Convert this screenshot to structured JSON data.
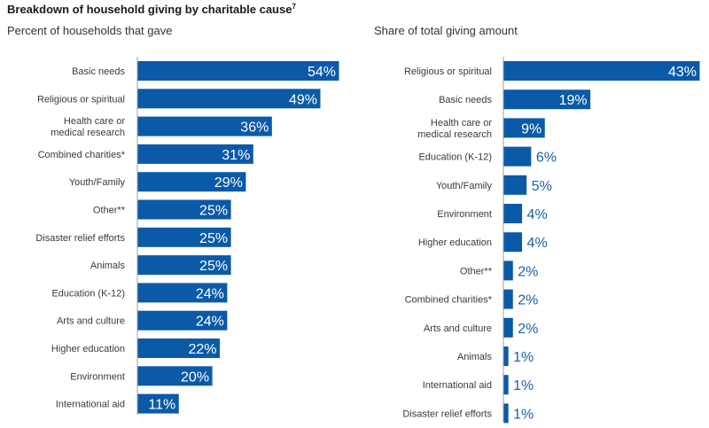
{
  "title": "Breakdown of household giving by charitable cause",
  "title_footnote": "7",
  "colors": {
    "bar": "#0b5aa8",
    "axis": "#a0a0a0",
    "outside_label": "#1a5faa"
  },
  "chart_data": [
    {
      "type": "bar",
      "orientation": "horizontal",
      "title": "Percent of households that gave",
      "xlabel": "",
      "ylabel": "",
      "xlim": [
        0,
        54
      ],
      "grid": false,
      "categories": [
        [
          "Basic needs"
        ],
        [
          "Religious or spiritual"
        ],
        [
          "Health care or",
          "medical research"
        ],
        [
          "Combined charities*"
        ],
        [
          "Youth/Family"
        ],
        [
          "Other**"
        ],
        [
          "Disaster relief efforts"
        ],
        [
          "Animals"
        ],
        [
          "Education (K-12)"
        ],
        [
          "Arts and culture"
        ],
        [
          "Higher education"
        ],
        [
          "Environment"
        ],
        [
          "International aid"
        ]
      ],
      "values": [
        54,
        49,
        36,
        31,
        29,
        25,
        25,
        25,
        24,
        24,
        22,
        20,
        11
      ],
      "value_labels": [
        "54%",
        "49%",
        "36%",
        "31%",
        "29%",
        "25%",
        "25%",
        "25%",
        "24%",
        "24%",
        "22%",
        "20%",
        "11%"
      ]
    },
    {
      "type": "bar",
      "orientation": "horizontal",
      "title": "Share of total giving amount",
      "xlabel": "",
      "ylabel": "",
      "xlim": [
        0,
        43
      ],
      "grid": false,
      "categories": [
        [
          "Religious or spiritual"
        ],
        [
          "Basic needs"
        ],
        [
          "Health care or",
          "medical research"
        ],
        [
          "Education (K-12)"
        ],
        [
          "Youth/Family"
        ],
        [
          "Environment"
        ],
        [
          "Higher education"
        ],
        [
          "Other**"
        ],
        [
          "Combined charities*"
        ],
        [
          "Arts and culture"
        ],
        [
          "Animals"
        ],
        [
          "International aid"
        ],
        [
          "Disaster relief efforts"
        ]
      ],
      "values": [
        43,
        19,
        9,
        6,
        5,
        4,
        4,
        2,
        2,
        2,
        1,
        1,
        1
      ],
      "value_labels": [
        "43%",
        "19%",
        "9%",
        "6%",
        "5%",
        "4%",
        "4%",
        "2%",
        "2%",
        "2%",
        "1%",
        "1%",
        "1%"
      ]
    }
  ]
}
